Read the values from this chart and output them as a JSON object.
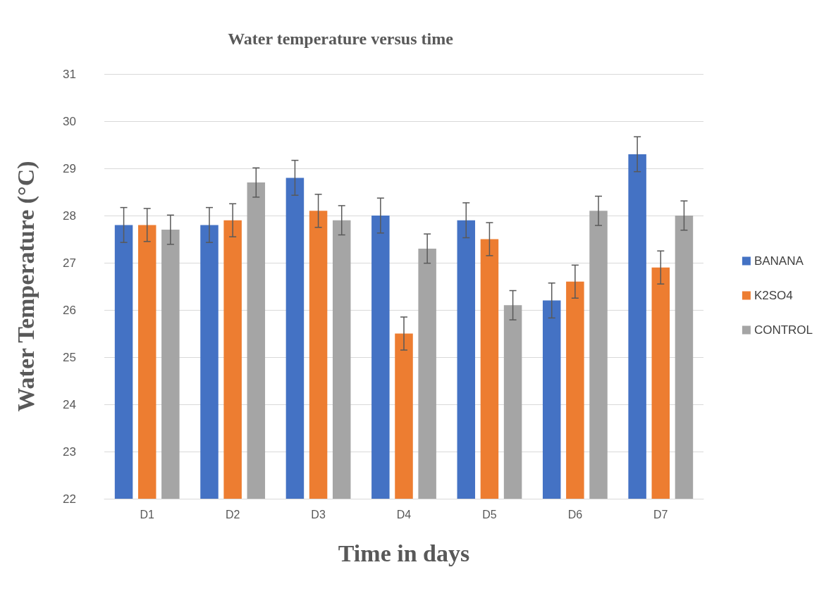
{
  "chart_data": {
    "type": "bar",
    "title": "Water temperature versus time",
    "xlabel": "Time in days",
    "ylabel": "Water Temperature (°C)",
    "categories": [
      "D1",
      "D2",
      "D3",
      "D4",
      "D5",
      "D6",
      "D7"
    ],
    "series": [
      {
        "name": "BANANA",
        "color": "#4472c4",
        "values": [
          27.8,
          27.8,
          28.8,
          28.0,
          27.9,
          26.2,
          29.3
        ],
        "errors": [
          0.37,
          0.37,
          0.37,
          0.37,
          0.37,
          0.37,
          0.37
        ]
      },
      {
        "name": "K2SO4",
        "color": "#ed7d31",
        "values": [
          27.8,
          27.9,
          28.1,
          25.5,
          27.5,
          26.6,
          26.9
        ],
        "errors": [
          0.35,
          0.35,
          0.35,
          0.35,
          0.35,
          0.35,
          0.35
        ]
      },
      {
        "name": "CONTROL",
        "color": "#a5a5a5",
        "values": [
          27.7,
          28.7,
          27.9,
          27.3,
          26.1,
          28.1,
          28.0
        ],
        "errors": [
          0.31,
          0.31,
          0.31,
          0.31,
          0.31,
          0.31,
          0.31
        ]
      }
    ],
    "ylim": [
      22,
      31
    ],
    "yticks": [
      22,
      23,
      24,
      25,
      26,
      27,
      28,
      29,
      30,
      31
    ],
    "grid": "y",
    "legend": "right"
  }
}
